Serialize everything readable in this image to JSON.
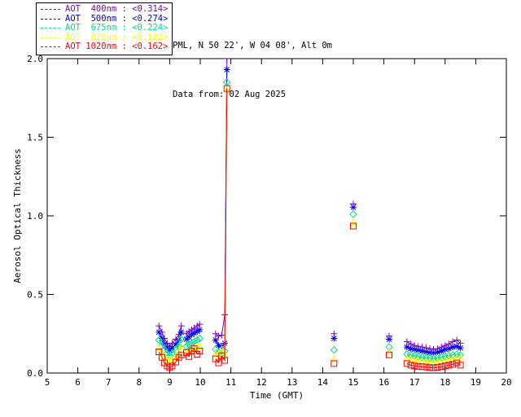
{
  "header": {
    "station_line": "PML, N 50 22', W 04 08', Alt 0m",
    "date_line": "Data from: 02 Aug 2025"
  },
  "legend": {
    "items": [
      {
        "label": "AOT  400nm : <0.314>",
        "color": "#8000C8"
      },
      {
        "label": "AOT  500nm : <0.274>",
        "color": "#0000FF"
      },
      {
        "label": "AOT  675nm : <0.224>",
        "color": "#00E08C"
      },
      {
        "label": "AOT  870nm : <0.183>",
        "color": "#FFFF00"
      },
      {
        "label": "AOT 1020nm : <0.162>",
        "color": "#FF0000"
      }
    ]
  },
  "chart_data": {
    "type": "scatter",
    "xlabel": "Time (GMT)",
    "ylabel": "Aerosol Optical Thickness",
    "xlim": [
      5,
      20
    ],
    "ylim": [
      0.0,
      2.0
    ],
    "x_ticks": [
      5,
      6,
      7,
      8,
      9,
      10,
      11,
      12,
      13,
      14,
      15,
      16,
      17,
      18,
      19,
      20
    ],
    "y_ticks": [
      0.0,
      0.5,
      1.0,
      1.5,
      2.0
    ],
    "y_tick_labels": [
      "0.0",
      "0.5",
      "1.0",
      "1.5",
      "2.0"
    ],
    "grid": false,
    "legend_position": "top-left-outside",
    "axis_color": "#000000",
    "series": [
      {
        "name": "AOT 400nm",
        "wavelength_nm": 400,
        "mean": "<0.314>",
        "color": "#8000C8",
        "marker": "plus",
        "segments": [
          {
            "t": [
              8.65,
              8.75,
              8.83,
              8.92,
              9.0,
              9.08,
              9.2,
              9.3,
              9.38
            ],
            "v": [
              0.3,
              0.26,
              0.22,
              0.19,
              0.17,
              0.19,
              0.215,
              0.245,
              0.3
            ]
          },
          {
            "t": [
              9.55,
              9.63,
              9.72,
              9.8,
              9.9,
              9.98
            ],
            "v": [
              0.25,
              0.265,
              0.275,
              0.285,
              0.3,
              0.31
            ]
          },
          {
            "t": [
              10.5,
              10.6,
              10.7,
              10.8,
              10.87
            ],
            "v": [
              0.25,
              0.235,
              0.24,
              0.37,
              2.0
            ]
          },
          {
            "t": [
              14.37
            ],
            "v": [
              0.25
            ]
          },
          {
            "t": [
              15.0
            ],
            "v": [
              1.075
            ]
          },
          {
            "t": [
              16.17
            ],
            "v": [
              0.235
            ]
          },
          {
            "t": [
              16.75,
              16.88,
              17.0,
              17.12,
              17.25,
              17.38,
              17.5,
              17.62,
              17.75,
              17.88,
              18.0,
              18.12,
              18.25,
              18.38,
              18.5
            ],
            "v": [
              0.2,
              0.185,
              0.175,
              0.17,
              0.165,
              0.16,
              0.155,
              0.15,
              0.155,
              0.165,
              0.175,
              0.185,
              0.2,
              0.21,
              0.19
            ]
          }
        ]
      },
      {
        "name": "AOT 500nm",
        "wavelength_nm": 500,
        "mean": "<0.274>",
        "color": "#0000FF",
        "marker": "asterisk",
        "segments": [
          {
            "t": [
              8.65,
              8.75,
              8.83,
              8.92,
              9.0,
              9.08,
              9.2,
              9.3,
              9.38
            ],
            "v": [
              0.26,
              0.22,
              0.185,
              0.16,
              0.145,
              0.16,
              0.18,
              0.21,
              0.26
            ]
          },
          {
            "t": [
              9.55,
              9.63,
              9.72,
              9.8,
              9.9,
              9.98
            ],
            "v": [
              0.215,
              0.23,
              0.245,
              0.255,
              0.265,
              0.275
            ]
          },
          {
            "t": [
              10.5,
              10.6,
              10.7,
              10.8,
              10.87
            ],
            "v": [
              0.21,
              0.175,
              0.165,
              0.19,
              1.93
            ]
          },
          {
            "t": [
              14.37
            ],
            "v": [
              0.22
            ]
          },
          {
            "t": [
              15.0
            ],
            "v": [
              1.055
            ]
          },
          {
            "t": [
              16.17
            ],
            "v": [
              0.215
            ]
          },
          {
            "t": [
              16.75,
              16.88,
              17.0,
              17.12,
              17.25,
              17.38,
              17.5,
              17.62,
              17.75,
              17.88,
              18.0,
              18.12,
              18.25,
              18.38,
              18.5
            ],
            "v": [
              0.165,
              0.155,
              0.15,
              0.145,
              0.14,
              0.135,
              0.13,
              0.128,
              0.132,
              0.14,
              0.15,
              0.155,
              0.165,
              0.17,
              0.16
            ]
          }
        ]
      },
      {
        "name": "AOT 675nm",
        "wavelength_nm": 675,
        "mean": "<0.224>",
        "color": "#00E08C",
        "marker": "diamond",
        "segments": [
          {
            "t": [
              8.65,
              8.75,
              8.83,
              8.92,
              9.0,
              9.08,
              9.2,
              9.3,
              9.38
            ],
            "v": [
              0.21,
              0.175,
              0.15,
              0.125,
              0.11,
              0.125,
              0.145,
              0.17,
              0.215
            ]
          },
          {
            "t": [
              9.55,
              9.63,
              9.72,
              9.8,
              9.9,
              9.98
            ],
            "v": [
              0.17,
              0.18,
              0.19,
              0.2,
              0.21,
              0.22
            ]
          },
          {
            "t": [
              10.5,
              10.6,
              10.7,
              10.8,
              10.87
            ],
            "v": [
              0.15,
              0.13,
              0.12,
              0.14,
              1.85
            ]
          },
          {
            "t": [
              14.37
            ],
            "v": [
              0.147
            ]
          },
          {
            "t": [
              15.0
            ],
            "v": [
              1.01
            ]
          },
          {
            "t": [
              16.17
            ],
            "v": [
              0.165
            ]
          },
          {
            "t": [
              16.75,
              16.88,
              17.0,
              17.12,
              17.25,
              17.38,
              17.5,
              17.62,
              17.75,
              17.88,
              18.0,
              18.12,
              18.25,
              18.38,
              18.5
            ],
            "v": [
              0.12,
              0.115,
              0.11,
              0.105,
              0.1,
              0.098,
              0.095,
              0.092,
              0.095,
              0.1,
              0.105,
              0.11,
              0.115,
              0.12,
              0.115
            ]
          }
        ]
      },
      {
        "name": "AOT 870nm",
        "wavelength_nm": 870,
        "mean": "<0.183>",
        "color": "#FFFF00",
        "marker": "triangle",
        "segments": [
          {
            "t": [
              8.65,
              8.75,
              8.83,
              8.92,
              9.0,
              9.08,
              9.2,
              9.3,
              9.38
            ],
            "v": [
              0.16,
              0.13,
              0.105,
              0.085,
              0.07,
              0.085,
              0.105,
              0.13,
              0.165
            ]
          },
          {
            "t": [
              9.55,
              9.63,
              9.72,
              9.8,
              9.9,
              9.98
            ],
            "v": [
              0.125,
              0.135,
              0.145,
              0.155,
              0.165,
              0.17
            ]
          },
          {
            "t": [
              10.5,
              10.6,
              10.7,
              10.8,
              10.87
            ],
            "v": [
              0.12,
              0.1,
              0.15,
              0.115,
              1.8
            ]
          },
          {
            "t": [
              14.37
            ],
            "v": [
              0.09
            ]
          },
          {
            "t": [
              15.0
            ],
            "v": [
              0.955
            ]
          },
          {
            "t": [
              16.17
            ],
            "v": [
              0.13
            ]
          },
          {
            "t": [
              16.75,
              16.88,
              17.0,
              17.12,
              17.25,
              17.38,
              17.5,
              17.62,
              17.75,
              17.88,
              18.0,
              18.12,
              18.25,
              18.38,
              18.5
            ],
            "v": [
              0.09,
              0.085,
              0.082,
              0.078,
              0.075,
              0.072,
              0.07,
              0.068,
              0.072,
              0.076,
              0.08,
              0.085,
              0.09,
              0.095,
              0.09
            ]
          }
        ]
      },
      {
        "name": "AOT 1020nm",
        "wavelength_nm": 1020,
        "mean": "<0.162>",
        "color": "#FF0000",
        "marker": "square",
        "segments": [
          {
            "t": [
              8.65,
              8.75,
              8.83,
              8.92,
              9.0,
              9.08,
              9.2,
              9.3,
              9.38
            ],
            "v": [
              0.135,
              0.1,
              0.065,
              0.045,
              0.035,
              0.045,
              0.07,
              0.1,
              0.115
            ]
          },
          {
            "t": [
              9.55,
              9.63,
              9.72,
              9.8,
              9.9,
              9.98
            ],
            "v": [
              0.13,
              0.105,
              0.14,
              0.155,
              0.12,
              0.14
            ]
          },
          {
            "t": [
              10.5,
              10.6,
              10.7,
              10.8,
              10.87
            ],
            "v": [
              0.09,
              0.065,
              0.11,
              0.08,
              1.81
            ]
          },
          {
            "t": [
              14.37
            ],
            "v": [
              0.06
            ]
          },
          {
            "t": [
              15.0
            ],
            "v": [
              0.935
            ]
          },
          {
            "t": [
              16.17
            ],
            "v": [
              0.115
            ]
          },
          {
            "t": [
              16.75,
              16.88,
              17.0,
              17.12,
              17.25,
              17.38,
              17.5,
              17.62,
              17.75,
              17.88,
              18.0,
              18.12,
              18.25,
              18.38,
              18.5
            ],
            "v": [
              0.06,
              0.05,
              0.045,
              0.042,
              0.04,
              0.038,
              0.035,
              0.033,
              0.036,
              0.04,
              0.045,
              0.05,
              0.055,
              0.065,
              0.05
            ]
          }
        ]
      }
    ]
  }
}
